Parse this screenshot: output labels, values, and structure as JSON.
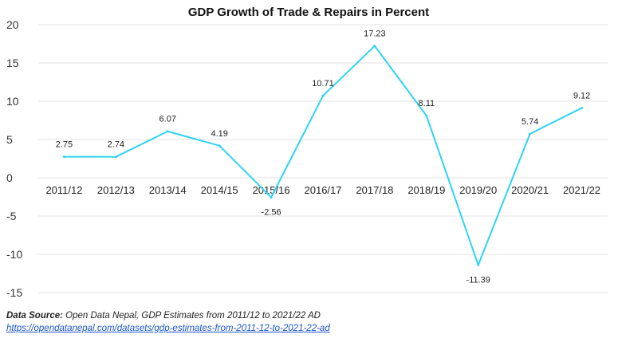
{
  "chart_data": {
    "type": "line",
    "title": "GDP Growth of Trade & Repairs in Percent",
    "xlabel": "",
    "ylabel": "",
    "categories": [
      "2011/12",
      "2012/13",
      "2013/14",
      "2014/15",
      "2015/16",
      "2016/17",
      "2017/18",
      "2018/19",
      "2019/20",
      "2020/21",
      "2021/22"
    ],
    "series": [
      {
        "values": [
          2.75,
          2.74,
          6.07,
          4.19,
          -2.56,
          10.71,
          17.23,
          8.11,
          -11.39,
          5.74,
          9.12
        ],
        "labels": [
          "2.75",
          "2.74",
          "6.07",
          "4.19",
          "-2.56",
          "10.71",
          "17.23",
          "8.11",
          "-11.39",
          "5.74",
          "9.12"
        ],
        "color": "#2ed3f5"
      }
    ],
    "ylim": [
      -15,
      20
    ],
    "yticks": [
      "20",
      "15",
      "10",
      "5",
      "0",
      "-5",
      "-10",
      "-15"
    ],
    "grid": true,
    "legend": "none"
  },
  "colors": {
    "line": "#2ed3f5",
    "grid": "#e3e3e3",
    "link": "#1a55c8"
  },
  "source": {
    "label": "Data Source:",
    "text": " Open Data Nepal,  GDP Estimates from 2011/12 to 2021/22 AD",
    "url": "https://opendatanepal.com/datasets/gdp-estimates-from-2011-12-to-2021-22-ad"
  }
}
